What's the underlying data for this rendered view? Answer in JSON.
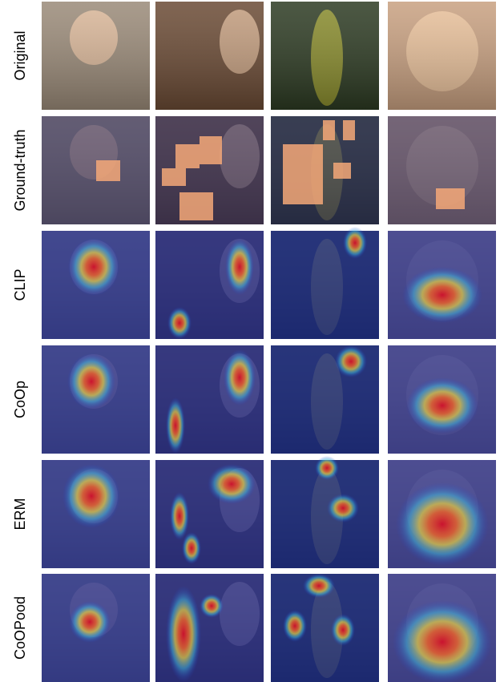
{
  "row_labels": [
    "Original",
    "Ground-truth",
    "CLIP",
    "CoOp",
    "ERM",
    "CoOPood"
  ]
}
